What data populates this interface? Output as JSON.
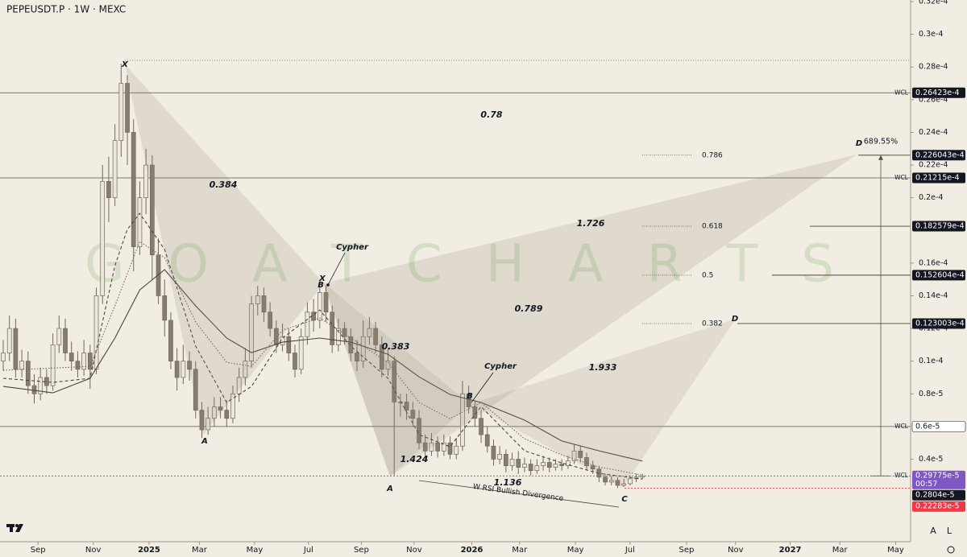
{
  "chart_data": {
    "type": "candlestick",
    "title": "PEPEUSDT.P · 1W · MEXC",
    "watermark": "G O A T   C H A R T S",
    "up_color": "#ece7dc",
    "down_color": "#867d71",
    "open": [
      1e-05,
      1.05e-05,
      1.2e-05,
      9.5e-06,
      1e-05,
      8.5e-06,
      8e-06,
      9e-06,
      8.5e-06,
      1.1e-05,
      1.2e-05,
      1.05e-05,
      1e-05,
      9.5e-06,
      1.05e-05,
      9.5e-06,
      1.4e-05,
      2.1e-05,
      2e-05,
      2.35e-05,
      2.7e-05,
      2.4e-05,
      1.7e-05,
      2e-05,
      2.2e-05,
      1.65e-05,
      1.4e-05,
      1.25e-05,
      1e-05,
      9e-06,
      1e-05,
      9.5e-06,
      7e-06,
      5.8e-06,
      6.5e-06,
      7.2e-06,
      7e-06,
      6.5e-06,
      8e-06,
      9e-06,
      1e-05,
      1.35e-05,
      1.4e-05,
      1.3e-05,
      1.2e-05,
      1.1e-05,
      1.15e-05,
      1.05e-05,
      9.5e-06,
      1.15e-05,
      1.3e-05,
      1.25e-05,
      1.42e-05,
      1.3e-05,
      1.1e-05,
      1.2e-05,
      1.15e-05,
      1.05e-05,
      1e-05,
      1.15e-05,
      1.2e-05,
      1.1e-05,
      9.5e-06,
      1e-05,
      7.5e-06,
      7.5e-06,
      7e-06,
      6.5e-06,
      5e-06,
      4.5e-06,
      5e-06,
      4.5e-06,
      5e-06,
      4.3e-06,
      4.8e-06,
      8e-06,
      7.2e-06,
      6.5e-06,
      5.5e-06,
      4.8e-06,
      4e-06,
      4.3e-06,
      3.6e-06,
      4e-06,
      3.5e-06,
      3.7e-06,
      3.3e-06,
      3.6e-06,
      3.8e-06,
      3.5e-06,
      3.7e-06,
      3.6e-06,
      3.9e-06,
      4.5e-06,
      4.1e-06,
      3.6e-06,
      3.4e-06,
      2.9e-06,
      2.6e-06,
      2.7e-06,
      2.4e-06,
      2.5e-06,
      2.8e-06,
      2.9e-06
    ],
    "high": [
      1.13e-05,
      1.28e-05,
      1.26e-05,
      1.07e-05,
      1.06e-05,
      9.2e-06,
      9.6e-06,
      9.5e-06,
      1.17e-05,
      1.28e-05,
      1.26e-05,
      1.12e-05,
      1.06e-05,
      1.13e-05,
      1.1e-05,
      1.45e-05,
      2.2e-05,
      2.25e-05,
      2.45e-05,
      2.82e-05,
      2.75e-05,
      2.48e-05,
      2.1e-05,
      2.3e-05,
      2.26e-05,
      1.75e-05,
      1.5e-05,
      1.3e-05,
      1.08e-05,
      1.1e-05,
      1.06e-05,
      1e-05,
      7.5e-06,
      7.2e-06,
      7.8e-06,
      7.8e-06,
      7.6e-06,
      8.5e-06,
      9.6e-06,
      1.08e-05,
      1.4e-05,
      1.46e-05,
      1.45e-05,
      1.36e-05,
      1.25e-05,
      1.23e-05,
      1.2e-05,
      1.1e-05,
      1.2e-05,
      1.36e-05,
      1.38e-05,
      1.49e-05,
      1.46e-05,
      1.34e-05,
      1.26e-05,
      1.24e-05,
      1.2e-05,
      1.13e-05,
      1.25e-05,
      1.27e-05,
      1.24e-05,
      1.15e-05,
      1.08e-05,
      1.03e-05,
      8e-06,
      8e-06,
      7.5e-06,
      7e-06,
      5.5e-06,
      5.6e-06,
      5.4e-06,
      5.5e-06,
      5.4e-06,
      5.3e-06,
      8.8e-06,
      8.5e-06,
      7.6e-06,
      7e-06,
      6e-06,
      5.2e-06,
      4.8e-06,
      4.6e-06,
      4.4e-06,
      4.5e-06,
      4.1e-06,
      4e-06,
      4e-06,
      4.2e-06,
      4.1e-06,
      4e-06,
      4e-06,
      4.2e-06,
      4.9e-06,
      4.8e-06,
      4.4e-06,
      3.9e-06,
      3.6e-06,
      3.1e-06,
      3e-06,
      2.9e-06,
      2.8e-06,
      3e-06,
      3.1e-06,
      3.1e-06
    ],
    "low": [
      9.4e-06,
      1e-05,
      9e-06,
      9e-06,
      8e-06,
      7.4e-06,
      7.6e-06,
      8e-06,
      8.2e-06,
      1.05e-05,
      1e-05,
      9.4e-06,
      9e-06,
      9.1e-06,
      8.3e-06,
      9.2e-06,
      1.35e-05,
      1.85e-05,
      1.95e-05,
      2.25e-05,
      2.2e-05,
      1.55e-05,
      1.65e-05,
      1.9e-05,
      1.5e-05,
      1.35e-05,
      1.15e-05,
      9.5e-06,
      8.2e-06,
      8.6e-06,
      8.8e-06,
      6.5e-06,
      5.3e-06,
      5.5e-06,
      6e-06,
      6.5e-06,
      6e-06,
      6.2e-06,
      7.5e-06,
      8.5e-06,
      9.6e-06,
      1.28e-05,
      1.24e-05,
      1.15e-05,
      1.05e-05,
      1.06e-05,
      1e-05,
      9e-06,
      9.2e-06,
      1.1e-05,
      1.18e-05,
      1.2e-05,
      1.24e-05,
      1.05e-05,
      1.06e-05,
      1.1e-05,
      1e-05,
      9.4e-06,
      9.6e-06,
      1.1e-05,
      1.05e-05,
      9e-06,
      9.1e-06,
      3e-06,
      6.6e-06,
      6.4e-06,
      6e-06,
      4.6e-06,
      4e-06,
      4.2e-06,
      4.1e-06,
      4.2e-06,
      4e-06,
      4e-06,
      4.5e-06,
      6.8e-06,
      6e-06,
      5e-06,
      4.4e-06,
      3.6e-06,
      3.7e-06,
      3.2e-06,
      3.3e-06,
      3.1e-06,
      3.2e-06,
      3e-06,
      3.1e-06,
      3.3e-06,
      3.2e-06,
      3.3e-06,
      3.3e-06,
      3.4e-06,
      3.7e-06,
      3.8e-06,
      3.3e-06,
      3.1e-06,
      2.6e-06,
      2.4e-06,
      2.4e-06,
      2.2283e-06,
      2.3e-06,
      2.4e-06,
      2.6e-06,
      2.8e-06
    ],
    "close": [
      1.05e-05,
      1.2e-05,
      9.5e-06,
      1e-05,
      8.5e-06,
      8e-06,
      9e-06,
      8.5e-06,
      1.1e-05,
      1.2e-05,
      1.05e-05,
      1e-05,
      9.5e-06,
      1.05e-05,
      9.5e-06,
      1.4e-05,
      2.1e-05,
      2e-05,
      2.35e-05,
      2.7e-05,
      2.4e-05,
      1.7e-05,
      2e-05,
      2.2e-05,
      1.65e-05,
      1.4e-05,
      1.25e-05,
      1e-05,
      9e-06,
      1e-05,
      9.5e-06,
      7e-06,
      5.8e-06,
      6.5e-06,
      7.2e-06,
      7e-06,
      6.5e-06,
      8e-06,
      9e-06,
      1e-05,
      1.35e-05,
      1.4e-05,
      1.3e-05,
      1.2e-05,
      1.1e-05,
      1.15e-05,
      1.05e-05,
      9.5e-06,
      1.15e-05,
      1.3e-05,
      1.25e-05,
      1.42e-05,
      1.3e-05,
      1.1e-05,
      1.2e-05,
      1.15e-05,
      1.05e-05,
      1e-05,
      1.15e-05,
      1.2e-05,
      1.1e-05,
      9.5e-06,
      1e-05,
      7.5e-06,
      7.5e-06,
      7e-06,
      6.5e-06,
      5e-06,
      4.5e-06,
      5e-06,
      4.5e-06,
      5e-06,
      4.3e-06,
      4.8e-06,
      8e-06,
      7.2e-06,
      6.5e-06,
      5.5e-06,
      4.8e-06,
      4e-06,
      4.3e-06,
      3.6e-06,
      4e-06,
      3.5e-06,
      3.7e-06,
      3.3e-06,
      3.6e-06,
      3.8e-06,
      3.5e-06,
      3.7e-06,
      3.6e-06,
      3.9e-06,
      4.5e-06,
      4.1e-06,
      3.6e-06,
      3.4e-06,
      2.9e-06,
      2.6e-06,
      2.7e-06,
      2.4e-06,
      2.5e-06,
      2.8e-06,
      2.9e-06,
      2.9775e-06
    ],
    "moving_averages": [
      {
        "style": "solid",
        "color": "#4a443d",
        "x": [
          0,
          8,
          14,
          18,
          22,
          26,
          31,
          36,
          40,
          45,
          51,
          56,
          62,
          67,
          72,
          77,
          84,
          90,
          96,
          103
        ],
        "values": [
          8.45e-06,
          8.06e-06,
          8.95e-06,
          1.141e-05,
          1.436e-05,
          1.56e-05,
          1.338e-05,
          1.141e-05,
          1.052e-05,
          1.116e-05,
          1.141e-05,
          1.116e-05,
          1.042e-05,
          9.04e-06,
          7.96e-06,
          7.47e-06,
          6.39e-06,
          5.11e-06,
          4.51e-06,
          3.88e-06
        ]
      },
      {
        "style": "dashed",
        "color": "#4a443d",
        "x": [
          0,
          8,
          14,
          16,
          18,
          20,
          22,
          26,
          31,
          36,
          40,
          45,
          51,
          56,
          62,
          67,
          72,
          77,
          84,
          90,
          96,
          103
        ],
        "values": [
          8.95e-06,
          8.7e-06,
          8.95e-06,
          1.239e-05,
          1.584e-05,
          1.806e-05,
          1.904e-05,
          1.683e-05,
          1.092e-05,
          7.47e-06,
          8.45e-06,
          1.141e-05,
          1.313e-05,
          1.092e-05,
          8.95e-06,
          5.5e-06,
          4.76e-06,
          7.22e-06,
          4.51e-06,
          3.77e-06,
          3.13e-06,
          2.78e-06
        ]
      },
      {
        "style": "dotted",
        "color": "#6f675c",
        "x": [
          0,
          14,
          18,
          22,
          26,
          31,
          36,
          40,
          45,
          51,
          56,
          62,
          67,
          72,
          77,
          84,
          90,
          96,
          103
        ],
        "values": [
          9.44e-06,
          9.68e-06,
          1.338e-05,
          1.732e-05,
          1.633e-05,
          1.239e-05,
          9.93e-06,
          9.68e-06,
          1.19e-05,
          1.264e-05,
          1.141e-05,
          9.93e-06,
          7.47e-06,
          6.48e-06,
          7.47e-06,
          5.25e-06,
          4.26e-06,
          3.52e-06,
          3.03e-06
        ]
      }
    ],
    "xlim": [
      -0.52,
      146.2
    ],
    "xticks": [
      {
        "value": 5.6,
        "label": "Sep"
      },
      {
        "value": 14.5,
        "label": "Nov"
      },
      {
        "value": 23.5,
        "label": "2025"
      },
      {
        "value": 31.6,
        "label": "Mar"
      },
      {
        "value": 40.5,
        "label": "May"
      },
      {
        "value": 49.2,
        "label": "Jul"
      },
      {
        "value": 57.7,
        "label": "Sep"
      },
      {
        "value": 66.2,
        "label": "Nov"
      },
      {
        "value": 75.5,
        "label": "2026"
      },
      {
        "value": 83.2,
        "label": "Mar"
      },
      {
        "value": 92.2,
        "label": "May"
      },
      {
        "value": 101,
        "label": "Jul"
      },
      {
        "value": 110.1,
        "label": "Sep"
      },
      {
        "value": 118,
        "label": "Nov"
      },
      {
        "value": 126.8,
        "label": "2027"
      },
      {
        "value": 134.8,
        "label": "Mar"
      },
      {
        "value": 143.8,
        "label": "May"
      }
    ],
    "ylim": [
      -1.05e-06,
      3.21e-05
    ],
    "yticks": [
      {
        "value": 3.2e-05,
        "label": "0.32e-4"
      },
      {
        "value": 3e-05,
        "label": "0.3e-4"
      },
      {
        "value": 2.8e-05,
        "label": "0.28e-4"
      },
      {
        "value": 2.6e-05,
        "label": "0.26e-4"
      },
      {
        "value": 2.4e-05,
        "label": "0.24e-4"
      },
      {
        "value": 2.2e-05,
        "label": "0.22e-4"
      },
      {
        "value": 2e-05,
        "label": "0.2e-4"
      },
      {
        "value": 1.6e-05,
        "label": "0.16e-4"
      },
      {
        "value": 1.4e-05,
        "label": "0.14e-4"
      },
      {
        "value": 1.2e-05,
        "label": "0.12e-4"
      },
      {
        "value": 1e-05,
        "label": "0.1e-4"
      },
      {
        "value": 8e-06,
        "label": "0.8e-5"
      },
      {
        "value": 4e-06,
        "label": "0.4e-5"
      }
    ],
    "wcl_label": "WCL",
    "price_labels": [
      {
        "value": 2.6423e-05,
        "label": "0.26423e-4",
        "color": "#131722",
        "line": "solid",
        "wcl": true
      },
      {
        "value": 2.26043e-05,
        "label": "0.226043e-4",
        "color": "#131722",
        "fib": "0.786"
      },
      {
        "value": 2.1215e-05,
        "label": "0.21215e-4",
        "color": "#131722",
        "line": "solid",
        "wcl": true
      },
      {
        "value": 1.82579e-05,
        "label": "0.182579e-4",
        "color": "#131722",
        "fib": "0.618"
      },
      {
        "value": 1.52604e-05,
        "label": "0.152604e-4",
        "color": "#131722",
        "fib": "0.5"
      },
      {
        "value": 1.23003e-05,
        "label": "0.123003e-4",
        "color": "#131722",
        "fib": "0.382"
      },
      {
        "value": 6e-06,
        "label": "0.6e-5",
        "color": "#ffffff",
        "line": "solid",
        "wcl": true
      },
      {
        "value": 2.9775e-06,
        "label": "0.29775e-5",
        "color": "#7e57c2",
        "countdown": "00:57",
        "line": "dashed",
        "wcl": true
      },
      {
        "value": 2.804e-06,
        "label": "0.2804e-5",
        "color": "#131722"
      },
      {
        "value": 2.2283e-06,
        "label": "0.22283e-5",
        "color": "#f23645",
        "line": "dotted"
      }
    ],
    "measure_label": "689.55%",
    "annotations": [
      "0.78",
      "0.384",
      "1.726",
      "0.789",
      "0.383",
      "1.933",
      "1.424",
      "1.136",
      "Cypher",
      "Cypher",
      "X",
      "X",
      "B",
      "A",
      "A",
      "B",
      "C",
      "D",
      "D",
      "W RSI Bullish Divergence"
    ],
    "scale_buttons": [
      "A",
      "L"
    ]
  }
}
